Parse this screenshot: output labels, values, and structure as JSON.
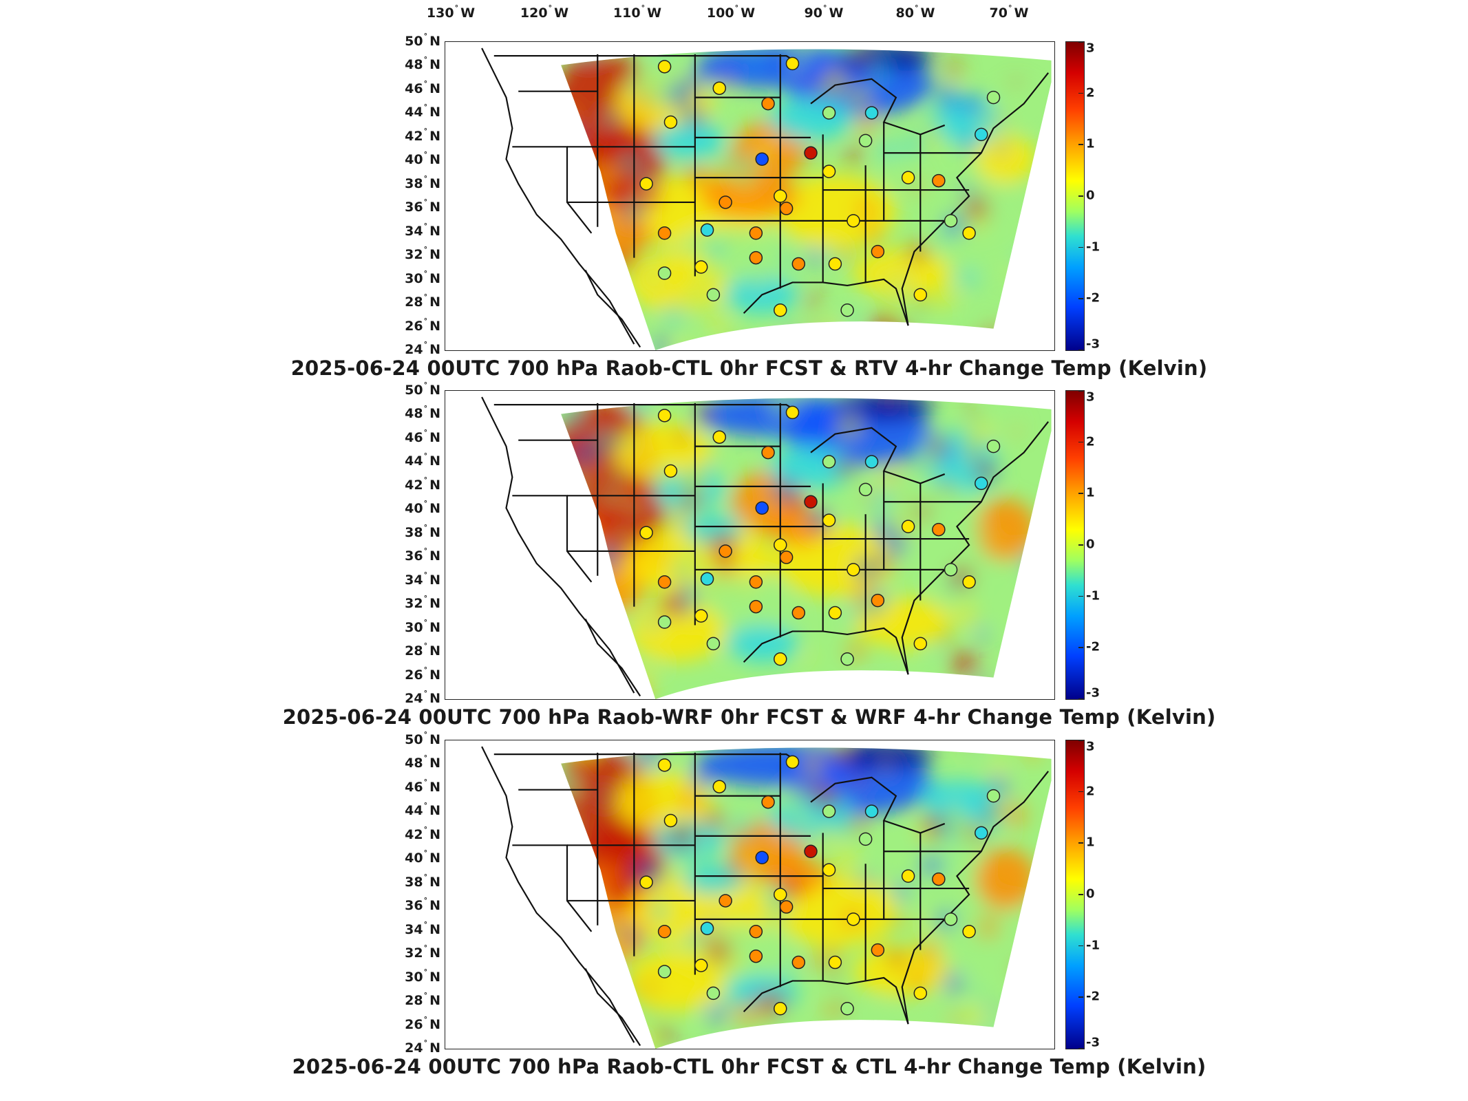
{
  "lon_labels": [
    {
      "deg": "130",
      "hemi": "W"
    },
    {
      "deg": "120",
      "hemi": "W"
    },
    {
      "deg": "110",
      "hemi": "W"
    },
    {
      "deg": "100",
      "hemi": "W"
    },
    {
      "deg": "90",
      "hemi": "W"
    },
    {
      "deg": "80",
      "hemi": "W"
    },
    {
      "deg": "70",
      "hemi": "W"
    }
  ],
  "lat_labels": [
    {
      "deg": "50",
      "hemi": "N"
    },
    {
      "deg": "48",
      "hemi": "N"
    },
    {
      "deg": "46",
      "hemi": "N"
    },
    {
      "deg": "44",
      "hemi": "N"
    },
    {
      "deg": "42",
      "hemi": "N"
    },
    {
      "deg": "40",
      "hemi": "N"
    },
    {
      "deg": "38",
      "hemi": "N"
    },
    {
      "deg": "36",
      "hemi": "N"
    },
    {
      "deg": "34",
      "hemi": "N"
    },
    {
      "deg": "32",
      "hemi": "N"
    },
    {
      "deg": "30",
      "hemi": "N"
    },
    {
      "deg": "28",
      "hemi": "N"
    },
    {
      "deg": "26",
      "hemi": "N"
    },
    {
      "deg": "24",
      "hemi": "N"
    }
  ],
  "colorbar": {
    "ticks": [
      "3",
      "2",
      "1",
      "0",
      "-1",
      "-2",
      "-3"
    ],
    "range": [
      -3,
      3
    ]
  },
  "panels": [
    {
      "title": "2025-06-24 00UTC 700 hPa Raob-CTL 0hr FCST & RTV 4-hr Change Temp (Kelvin)"
    },
    {
      "title": "2025-06-24 00UTC 700 hPa Raob-WRF 0hr FCST & WRF 4-hr Change Temp (Kelvin)"
    },
    {
      "title": "2025-06-24 00UTC 700 hPa Raob-CTL 0hr FCST & CTL 4-hr Change Temp (Kelvin)"
    }
  ],
  "colors": {
    "hot": "#c81400",
    "warm": "#ff8c00",
    "mild": "#ffe600",
    "neutral": "#a0f080",
    "cool": "#30d8e0",
    "cold": "#1050ff",
    "deep": "#0010a0"
  }
}
